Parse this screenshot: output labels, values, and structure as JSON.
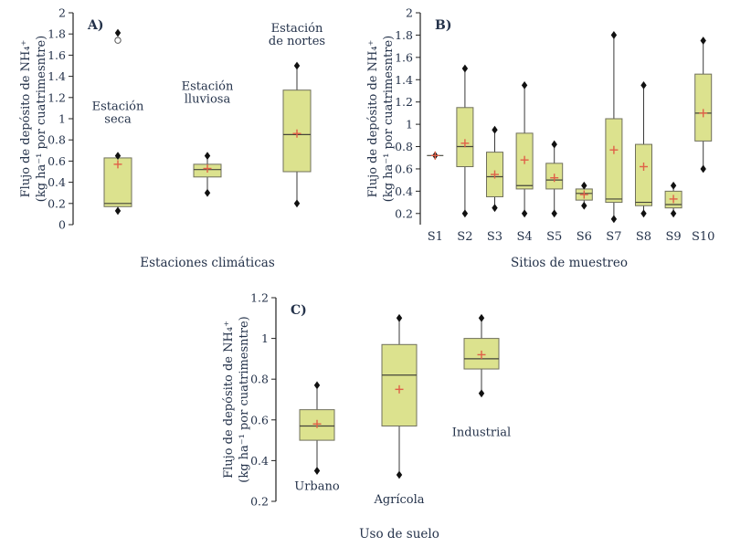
{
  "colors": {
    "box_fill": "#dce28e",
    "box_stroke": "#70705c",
    "whisker": "#3a3a3a",
    "median": "#44443a",
    "mean": "#e06048",
    "marker": "#111111",
    "text": "#24324a",
    "axis": "#222222"
  },
  "chart_data": [
    {
      "type": "box",
      "panel_label": "A)",
      "xlabel": "Estaciones climáticas",
      "ylabel": [
        "Flujo de depósito de NH₄⁺",
        "(kg ha⁻¹ por cuatrimesntre)"
      ],
      "ylim": [
        0,
        2
      ],
      "yticks": [
        0,
        0.2,
        0.4,
        0.6,
        0.8,
        1,
        1.2,
        1.4,
        1.6,
        1.8,
        2
      ],
      "xticklabels": [],
      "boxes": [
        {
          "name": "Estación seca",
          "whisker_low": 0.13,
          "q1": 0.17,
          "median": 0.2,
          "q3": 0.63,
          "whisker_high": 0.65,
          "mean": 0.57,
          "outliers": [
            {
              "value": 1.81,
              "shape": "diamond"
            },
            {
              "value": 1.74,
              "shape": "circle"
            }
          ]
        },
        {
          "name": "Estación lluviosa",
          "whisker_low": 0.3,
          "q1": 0.45,
          "median": 0.52,
          "q3": 0.57,
          "whisker_high": 0.65,
          "mean": 0.53,
          "outliers": []
        },
        {
          "name": "Estación de nortes",
          "whisker_low": 0.2,
          "q1": 0.5,
          "median": 0.85,
          "q3": 1.27,
          "whisker_high": 1.5,
          "mean": 0.86,
          "outliers": []
        }
      ],
      "annotations": [
        {
          "lines": [
            "Estación",
            "seca"
          ],
          "box": 0,
          "value": 1.08
        },
        {
          "lines": [
            "Estación",
            "lluviosa"
          ],
          "box": 1,
          "value": 1.27
        },
        {
          "lines": [
            "Estación",
            "de nortes"
          ],
          "box": 2,
          "value": 1.82
        }
      ]
    },
    {
      "type": "box",
      "panel_label": "B)",
      "xlabel": "Sitios de muestreo",
      "ylabel": [
        "Flujo de depósito de NH₄⁺",
        "(kg ha⁻¹ por cuatrimesntre)"
      ],
      "ylim": [
        0.1,
        2
      ],
      "yticks": [
        0.2,
        0.4,
        0.6,
        0.8,
        1,
        1.2,
        1.4,
        1.6,
        1.8,
        2
      ],
      "xticklabels": [
        "S1",
        "S2",
        "S3",
        "S4",
        "S5",
        "S6",
        "S7",
        "S8",
        "S9",
        "S10"
      ],
      "boxes": [
        {
          "name": "S1",
          "whisker_low": 0.72,
          "q1": 0.72,
          "median": 0.72,
          "q3": 0.72,
          "whisker_high": 0.72,
          "mean": 0.72,
          "outliers": []
        },
        {
          "name": "S2",
          "whisker_low": 0.2,
          "q1": 0.62,
          "median": 0.8,
          "q3": 1.15,
          "whisker_high": 1.5,
          "mean": 0.83,
          "outliers": []
        },
        {
          "name": "S3",
          "whisker_low": 0.25,
          "q1": 0.35,
          "median": 0.53,
          "q3": 0.75,
          "whisker_high": 0.95,
          "mean": 0.55,
          "outliers": []
        },
        {
          "name": "S4",
          "whisker_low": 0.2,
          "q1": 0.42,
          "median": 0.45,
          "q3": 0.92,
          "whisker_high": 1.35,
          "mean": 0.68,
          "outliers": []
        },
        {
          "name": "S5",
          "whisker_low": 0.2,
          "q1": 0.42,
          "median": 0.5,
          "q3": 0.65,
          "whisker_high": 0.82,
          "mean": 0.52,
          "outliers": []
        },
        {
          "name": "S6",
          "whisker_low": 0.27,
          "q1": 0.32,
          "median": 0.38,
          "q3": 0.42,
          "whisker_high": 0.45,
          "mean": 0.37,
          "outliers": []
        },
        {
          "name": "S7",
          "whisker_low": 0.15,
          "q1": 0.3,
          "median": 0.33,
          "q3": 1.05,
          "whisker_high": 1.8,
          "mean": 0.77,
          "outliers": []
        },
        {
          "name": "S8",
          "whisker_low": 0.2,
          "q1": 0.27,
          "median": 0.3,
          "q3": 0.82,
          "whisker_high": 1.35,
          "mean": 0.62,
          "outliers": []
        },
        {
          "name": "S9",
          "whisker_low": 0.2,
          "q1": 0.25,
          "median": 0.28,
          "q3": 0.4,
          "whisker_high": 0.45,
          "mean": 0.33,
          "outliers": []
        },
        {
          "name": "S10",
          "whisker_low": 0.6,
          "q1": 0.85,
          "median": 1.1,
          "q3": 1.45,
          "whisker_high": 1.75,
          "mean": 1.1,
          "outliers": []
        }
      ],
      "annotations": []
    },
    {
      "type": "box",
      "panel_label": "C)",
      "xlabel": "Uso de suelo",
      "ylabel": [
        "Flujo de depósito de NH₄⁺",
        "(kg ha⁻¹ por cuatrimesntre)"
      ],
      "ylim": [
        0.2,
        1.2
      ],
      "yticks": [
        0.2,
        0.4,
        0.6,
        0.8,
        1,
        1.2
      ],
      "xticklabels": [],
      "boxes": [
        {
          "name": "Urbano",
          "whisker_low": 0.35,
          "q1": 0.5,
          "median": 0.57,
          "q3": 0.65,
          "whisker_high": 0.77,
          "mean": 0.58,
          "outliers": []
        },
        {
          "name": "Agrícola",
          "whisker_low": 0.33,
          "q1": 0.57,
          "median": 0.82,
          "q3": 0.97,
          "whisker_high": 1.1,
          "mean": 0.75,
          "outliers": []
        },
        {
          "name": "Industrial",
          "whisker_low": 0.73,
          "q1": 0.85,
          "median": 0.9,
          "q3": 1.0,
          "whisker_high": 1.1,
          "mean": 0.92,
          "outliers": []
        }
      ],
      "annotations": [
        {
          "lines": [
            "Urbano"
          ],
          "box": 0,
          "value": 0.255
        },
        {
          "lines": [
            "Agrícola"
          ],
          "box": 1,
          "value": 0.19
        },
        {
          "lines": [
            "Industrial"
          ],
          "box": 2,
          "value": 0.52
        }
      ]
    }
  ]
}
